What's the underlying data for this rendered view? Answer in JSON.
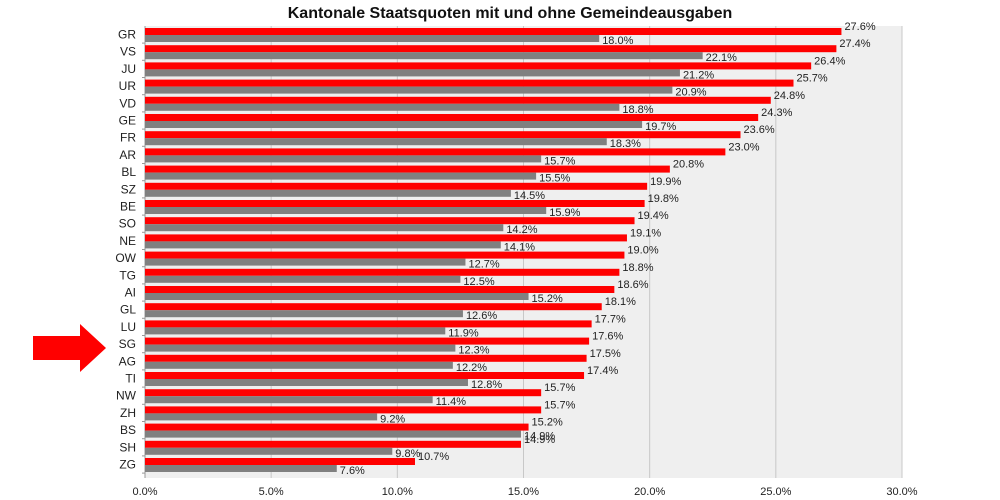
{
  "chart_data": {
    "type": "bar",
    "orientation": "horizontal",
    "title": "Kantonale Staatsquoten mit und ohne Gemeindeausgaben",
    "xlabel": "",
    "ylabel": "",
    "xlim": [
      0,
      30
    ],
    "x_ticks": [
      0,
      5,
      10,
      15,
      20,
      25,
      30
    ],
    "x_tick_labels": [
      "0.0%",
      "5.0%",
      "10.0%",
      "15.0%",
      "20.0%",
      "25.0%",
      "30.0%"
    ],
    "grid": "vertical",
    "categories": [
      "GR",
      "VS",
      "JU",
      "UR",
      "VD",
      "GE",
      "FR",
      "AR",
      "BL",
      "SZ",
      "BE",
      "SO",
      "NE",
      "OW",
      "TG",
      "AI",
      "GL",
      "LU",
      "SG",
      "AG",
      "TI",
      "NW",
      "ZH",
      "BS",
      "SH",
      "ZG"
    ],
    "series": [
      {
        "color": "#ff0000",
        "values": [
          27.6,
          27.4,
          26.4,
          25.7,
          24.8,
          24.3,
          23.6,
          23.0,
          20.8,
          19.9,
          19.8,
          19.4,
          19.1,
          19.0,
          18.8,
          18.6,
          18.1,
          17.7,
          17.6,
          17.5,
          17.4,
          15.7,
          15.7,
          15.2,
          14.9,
          10.7
        ],
        "labels": [
          "27.6%",
          "27.4%",
          "26.4%",
          "25.7%",
          "24.8%",
          "24.3%",
          "23.6%",
          "23.0%",
          "20.8%",
          "19.9%",
          "19.8%",
          "19.4%",
          "19.1%",
          "19.0%",
          "18.8%",
          "18.6%",
          "18.1%",
          "17.7%",
          "17.6%",
          "17.5%",
          "17.4%",
          "15.7%",
          "15.7%",
          "15.2%",
          "14.9%",
          "10.7%"
        ]
      },
      {
        "color": "#808080",
        "values": [
          18.0,
          22.1,
          21.2,
          20.9,
          18.8,
          19.7,
          18.3,
          15.7,
          15.5,
          14.5,
          15.9,
          14.2,
          14.1,
          12.7,
          12.5,
          15.2,
          12.6,
          11.9,
          12.3,
          12.2,
          12.8,
          11.4,
          9.2,
          14.9,
          9.8,
          7.6
        ],
        "labels": [
          "18.0%",
          "22.1%",
          "21.2%",
          "20.9%",
          "18.8%",
          "19.7%",
          "18.3%",
          "15.7%",
          "15.5%",
          "14.5%",
          "15.9%",
          "14.2%",
          "14.1%",
          "12.7%",
          "12.5%",
          "15.2%",
          "12.6%",
          "11.9%",
          "12.3%",
          "12.2%",
          "12.8%",
          "11.4%",
          "9.2%",
          "14.9%",
          "9.8%",
          "7.6%"
        ]
      }
    ],
    "highlight": {
      "category": "SG",
      "marker": "arrow",
      "color": "#ff0000"
    }
  }
}
